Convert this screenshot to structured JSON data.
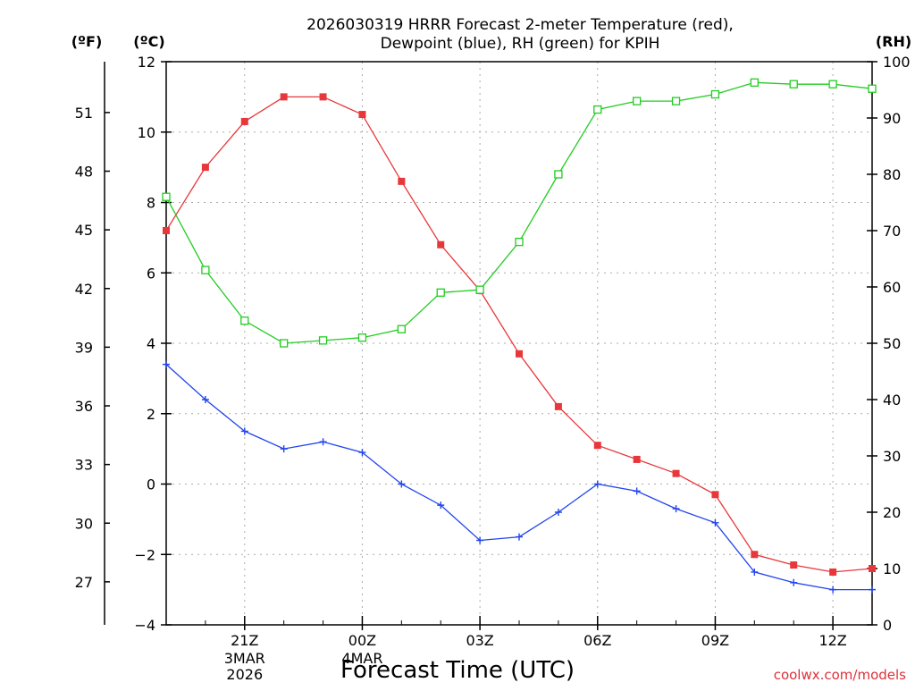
{
  "chart_data": {
    "type": "line",
    "title_line1": "2026030319 HRRR Forecast 2-meter Temperature (red),",
    "title_line2": "Dewpoint (blue), RH (green) for KPIH",
    "xlabel": "Forecast Time (UTC)",
    "credit": "coolwx.com/models",
    "units": {
      "fahrenheit": "(ºF)",
      "celsius": "(ºC)",
      "rh": "(RH)"
    },
    "x_hours_since_start": [
      0,
      1,
      2,
      3,
      4,
      5,
      6,
      7,
      8,
      9,
      10,
      11,
      12,
      13,
      14,
      15,
      16,
      17,
      18
    ],
    "x_ticks": [
      {
        "x": 2,
        "label": "21Z",
        "sub1": "3MAR",
        "sub2": "2026"
      },
      {
        "x": 5,
        "label": "00Z",
        "sub1": "4MAR",
        "sub2": ""
      },
      {
        "x": 8,
        "label": "03Z",
        "sub1": "",
        "sub2": ""
      },
      {
        "x": 11,
        "label": "06Z",
        "sub1": "",
        "sub2": ""
      },
      {
        "x": 14,
        "label": "09Z",
        "sub1": "",
        "sub2": ""
      },
      {
        "x": 17,
        "label": "12Z",
        "sub1": "",
        "sub2": ""
      }
    ],
    "x_range": [
      0,
      18
    ],
    "celsius_range": [
      -4,
      12
    ],
    "celsius_ticks": [
      "12",
      "10",
      "8",
      "6",
      "4",
      "2",
      "0",
      "−2",
      "−4"
    ],
    "celsius_tick_values": [
      12,
      10,
      8,
      6,
      4,
      2,
      0,
      -2,
      -4
    ],
    "fahrenheit_ticks": [
      "51",
      "48",
      "45",
      "42",
      "39",
      "36",
      "33",
      "30",
      "27"
    ],
    "fahrenheit_tick_values": [
      51,
      48,
      45,
      42,
      39,
      36,
      33,
      30,
      27
    ],
    "rh_range": [
      0,
      100
    ],
    "rh_ticks": [
      "100",
      "90",
      "80",
      "70",
      "60",
      "50",
      "40",
      "30",
      "20",
      "10",
      "0"
    ],
    "rh_tick_values": [
      100,
      90,
      80,
      70,
      60,
      50,
      40,
      30,
      20,
      10,
      0
    ],
    "series": [
      {
        "name": "Temperature",
        "axis": "celsius",
        "color": "#e8373a",
        "marker": "filled-square",
        "values": [
          7.2,
          9.0,
          10.3,
          11.0,
          11.0,
          10.5,
          8.6,
          6.8,
          5.5,
          3.7,
          2.2,
          1.1,
          0.7,
          0.3,
          -0.3,
          -2.0,
          -2.3,
          -2.5,
          -2.4
        ]
      },
      {
        "name": "Dewpoint",
        "axis": "celsius",
        "color": "#2244ee",
        "marker": "plus",
        "values": [
          3.4,
          2.4,
          1.5,
          1.0,
          1.2,
          0.9,
          0.0,
          -0.6,
          -1.6,
          -1.5,
          -0.8,
          0.0,
          -0.2,
          -0.7,
          -1.1,
          -2.5,
          -2.8,
          -3.0,
          -3.0
        ]
      },
      {
        "name": "RH",
        "axis": "rh",
        "color": "#22cc22",
        "marker": "open-square",
        "values": [
          76,
          63,
          54,
          50,
          50.5,
          51,
          52.5,
          59,
          59.5,
          68,
          80,
          91.5,
          93,
          93,
          94.2,
          96.3,
          96,
          96,
          95.2
        ]
      }
    ]
  }
}
